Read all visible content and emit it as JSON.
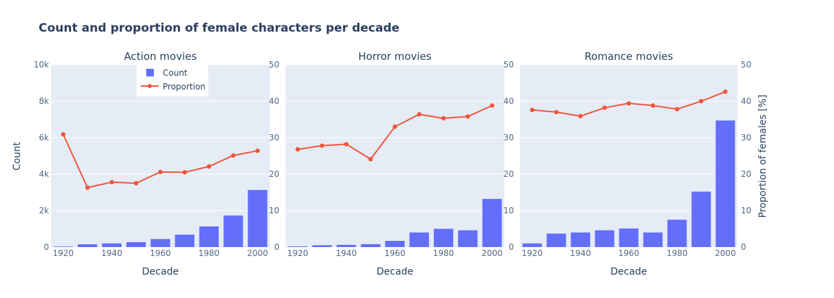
{
  "chart_data": {
    "type": "bar+line",
    "title": "Count and proportion of female characters per decade",
    "xlabel": "Decade",
    "ylabel_left": "Count",
    "ylabel_right": "Proportion of females [%]",
    "legend": {
      "placement": "top-left",
      "items": [
        {
          "label": "Count",
          "kind": "bar"
        },
        {
          "label": "Proportion",
          "kind": "line"
        }
      ]
    },
    "colors": {
      "bar": "#636efa",
      "line": "#ef553b",
      "plot_bg": "#e5ecf6",
      "grid": "#ffffff"
    },
    "x": [
      1920,
      1930,
      1940,
      1950,
      1960,
      1970,
      1980,
      1990,
      2000
    ],
    "x_ticks": [
      "1920",
      "1940",
      "1960",
      "1980",
      "2000"
    ],
    "panels": [
      {
        "subtitle": "Action movies",
        "count_ylim": [
          0,
          10000
        ],
        "count_ticks": [
          "0",
          "2k",
          "4k",
          "6k",
          "8k",
          "10k"
        ],
        "prop_ylim": [
          0,
          50
        ],
        "prop_ticks": [
          "0",
          "10",
          "20",
          "30",
          "40",
          "50"
        ],
        "counts": [
          30,
          150,
          200,
          270,
          440,
          680,
          1130,
          1730,
          3130
        ],
        "proportion": [
          30.9,
          16.3,
          17.8,
          17.5,
          20.6,
          20.5,
          22.1,
          25.1,
          26.4
        ]
      },
      {
        "subtitle": "Horror movies",
        "count_ylim": [
          0,
          50000
        ],
        "count_ticks": [],
        "prop_ylim": [
          0,
          50
        ],
        "prop_ticks": [
          "0",
          "10",
          "20",
          "30",
          "40",
          "50"
        ],
        "counts": [
          200,
          500,
          600,
          800,
          1700,
          4000,
          5000,
          4600,
          13200
        ],
        "proportion": [
          26.8,
          27.8,
          28.2,
          24.1,
          33.0,
          36.4,
          35.3,
          35.8,
          38.8
        ]
      },
      {
        "subtitle": "Romance movies",
        "count_ylim": [
          0,
          50000
        ],
        "count_ticks": [],
        "prop_ylim": [
          0,
          50
        ],
        "prop_ticks": [
          "0",
          "10",
          "20",
          "30",
          "40",
          "50"
        ],
        "counts": [
          1000,
          3700,
          4000,
          4600,
          5100,
          4000,
          7500,
          15200,
          34700
        ],
        "proportion": [
          37.6,
          37.0,
          35.9,
          38.2,
          39.4,
          38.8,
          37.8,
          40.0,
          42.6
        ]
      }
    ]
  }
}
